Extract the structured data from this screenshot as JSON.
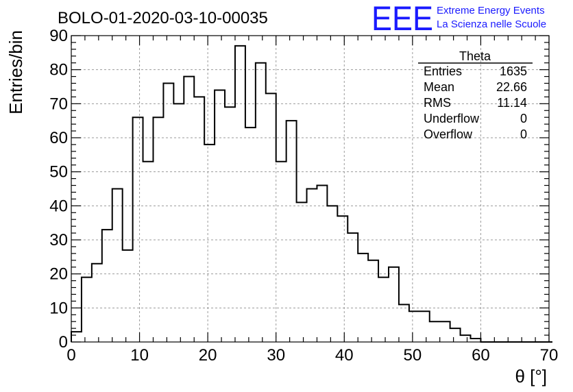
{
  "title": "BOLO-01-2020-03-10-00035",
  "logo": {
    "mark": "EEE",
    "line1": "Extreme Energy Events",
    "line2": "La Scienza nelle Scuole",
    "color": "#1a1aff"
  },
  "stats": {
    "name": "Theta",
    "rows": [
      {
        "label": "Entries",
        "value": "1635"
      },
      {
        "label": "Mean",
        "value": "22.66"
      },
      {
        "label": "RMS",
        "value": "11.14"
      },
      {
        "label": "Underflow",
        "value": "0"
      },
      {
        "label": "Overflow",
        "value": "0"
      }
    ]
  },
  "chart_data": {
    "type": "bar",
    "style": "step-histogram",
    "title": "BOLO-01-2020-03-10-00035",
    "xlabel": "θ [°]",
    "ylabel": "Entries/bin",
    "xlim": [
      0,
      70
    ],
    "ylim": [
      0,
      90
    ],
    "xticks": [
      0,
      10,
      20,
      30,
      40,
      50,
      60,
      70
    ],
    "yticks": [
      0,
      10,
      20,
      30,
      40,
      50,
      60,
      70,
      80,
      90
    ],
    "grid": true,
    "bin_width": 1.5,
    "bin_start": 0,
    "values": [
      3,
      19,
      23,
      33,
      45,
      27,
      66,
      53,
      66,
      76,
      70,
      78,
      72,
      58,
      74,
      69,
      87,
      63,
      82,
      73,
      53,
      65,
      41,
      45,
      46,
      40,
      37,
      32,
      26,
      24,
      19,
      22,
      11,
      9,
      9,
      6,
      6,
      4,
      2,
      1,
      0,
      0,
      0,
      0,
      0,
      0,
      0
    ]
  }
}
